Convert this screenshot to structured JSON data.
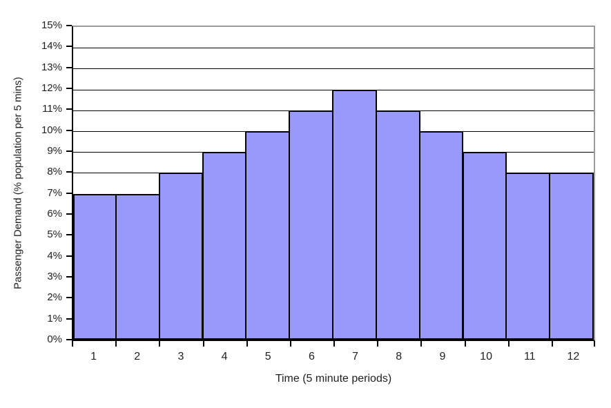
{
  "chart_data": {
    "type": "bar",
    "subtype": "histogram",
    "title": "",
    "xlabel": "Time (5 minute periods)",
    "ylabel": "Passenger Demand (% population per 5 mins)",
    "categories": [
      "1",
      "2",
      "3",
      "4",
      "5",
      "6",
      "7",
      "8",
      "9",
      "10",
      "11",
      "12"
    ],
    "values": [
      7,
      7,
      8,
      9,
      10,
      11,
      12,
      11,
      10,
      9,
      8,
      8
    ],
    "value_unit": "%",
    "ylim": [
      0,
      15
    ],
    "ytick_step": 1,
    "ytick_labels": [
      "0%",
      "1%",
      "2%",
      "3%",
      "4%",
      "5%",
      "6%",
      "7%",
      "8%",
      "9%",
      "10%",
      "11%",
      "12%",
      "13%",
      "14%",
      "15%"
    ],
    "grid": "horizontal",
    "legend": "none",
    "bar_gap": 0,
    "colors": {
      "bar_fill": "#9999FA",
      "bar_border": "#000000",
      "gridline": "#000000",
      "plot_border": "#9B9B9B",
      "axis": "#000000",
      "text": "#1F1F1F",
      "background": "#FFFFFF"
    }
  }
}
